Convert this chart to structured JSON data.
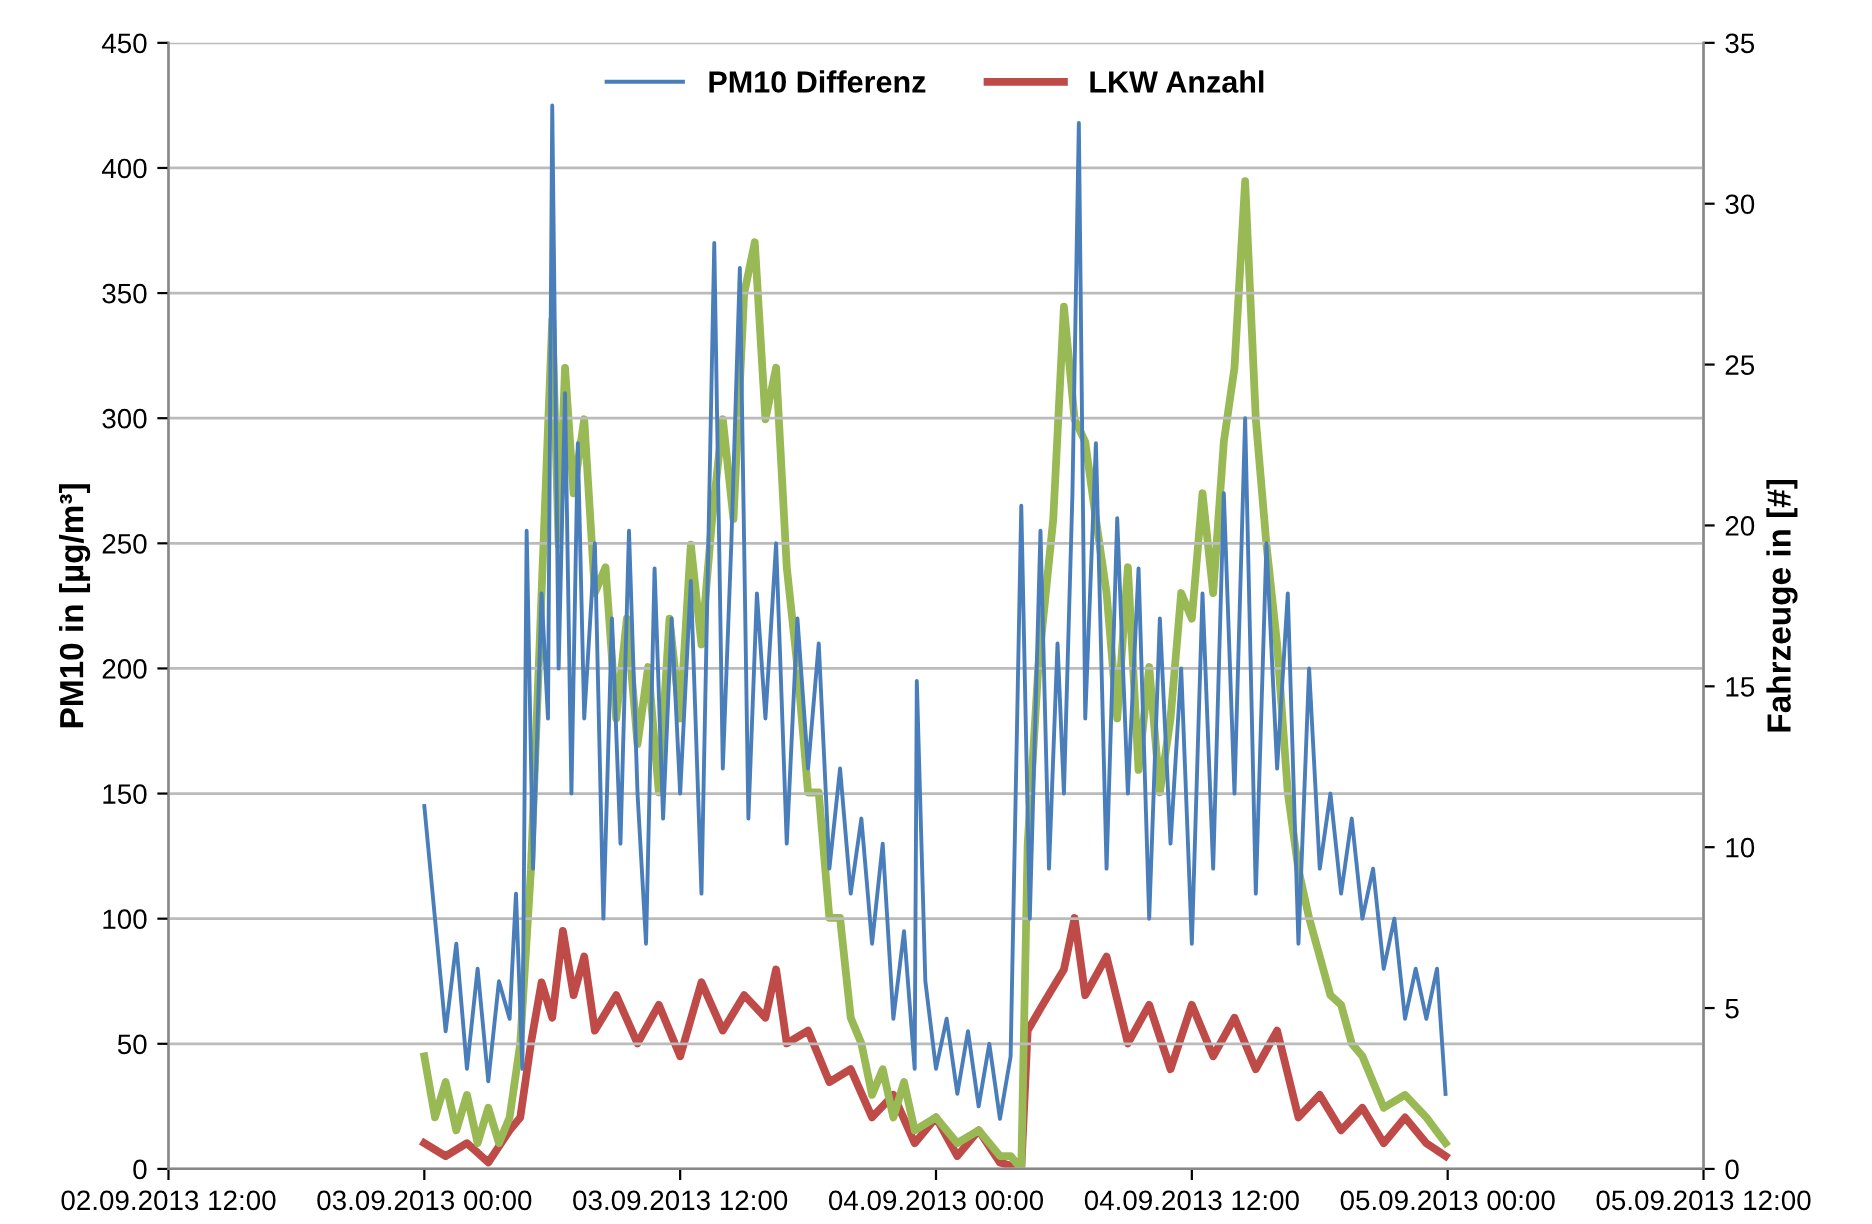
{
  "chart_data": {
    "type": "line",
    "ylabel": "PM10 in [µg/m³]",
    "y2label": "Fahrzeuge in [#]",
    "xlim": [
      "2013-09-02T12:00",
      "2013-09-05T12:00"
    ],
    "xticks": [
      {
        "value": "2013-09-02T12:00",
        "label": "02.09.2013 12:00"
      },
      {
        "value": "2013-09-03T00:00",
        "label": "03.09.2013 00:00"
      },
      {
        "value": "2013-09-03T12:00",
        "label": "03.09.2013 12:00"
      },
      {
        "value": "2013-09-04T00:00",
        "label": "04.09.2013 00:00"
      },
      {
        "value": "2013-09-04T12:00",
        "label": "04.09.2013 12:00"
      },
      {
        "value": "2013-09-05T00:00",
        "label": "05.09.2013 00:00"
      },
      {
        "value": "2013-09-05T12:00",
        "label": "05.09.2013 12:00"
      }
    ],
    "ylim": [
      0,
      450
    ],
    "yticks": [
      0,
      50,
      100,
      150,
      200,
      250,
      300,
      350,
      400,
      450
    ],
    "y2lim": [
      0,
      35
    ],
    "y2ticks": [
      0,
      5,
      10,
      15,
      20,
      25,
      30,
      35
    ],
    "grid": "y",
    "legend": "top",
    "marker": "none",
    "line_style": "solid",
    "series": [
      {
        "name": "PM10 Differenz",
        "color": "#4a7ebb",
        "x": [
          "2013-09-03T00:00",
          "2013-09-03T00:30",
          "2013-09-03T01:00",
          "2013-09-03T01:30",
          "2013-09-03T02:00",
          "2013-09-03T02:30",
          "2013-09-03T03:00",
          "2013-09-03T03:30",
          "2013-09-03T04:00",
          "2013-09-03T04:18",
          "2013-09-03T04:36",
          "2013-09-03T04:48",
          "2013-09-03T05:06",
          "2013-09-03T05:30",
          "2013-09-03T05:48",
          "2013-09-03T06:00",
          "2013-09-03T06:18",
          "2013-09-03T06:36",
          "2013-09-03T06:54",
          "2013-09-03T07:12",
          "2013-09-03T07:30",
          "2013-09-03T08:00",
          "2013-09-03T08:24",
          "2013-09-03T08:48",
          "2013-09-03T09:12",
          "2013-09-03T09:36",
          "2013-09-03T10:00",
          "2013-09-03T10:24",
          "2013-09-03T10:48",
          "2013-09-03T11:12",
          "2013-09-03T11:36",
          "2013-09-03T12:00",
          "2013-09-03T12:30",
          "2013-09-03T13:00",
          "2013-09-03T13:36",
          "2013-09-03T14:00",
          "2013-09-03T14:24",
          "2013-09-03T14:48",
          "2013-09-03T15:12",
          "2013-09-03T15:36",
          "2013-09-03T16:00",
          "2013-09-03T16:30",
          "2013-09-03T17:00",
          "2013-09-03T17:30",
          "2013-09-03T18:00",
          "2013-09-03T18:30",
          "2013-09-03T19:00",
          "2013-09-03T19:30",
          "2013-09-03T20:00",
          "2013-09-03T20:30",
          "2013-09-03T21:00",
          "2013-09-03T21:30",
          "2013-09-03T22:00",
          "2013-09-03T22:30",
          "2013-09-03T23:00",
          "2013-09-03T23:06",
          "2013-09-03T23:30",
          "2013-09-04T00:00",
          "2013-09-04T00:30",
          "2013-09-04T01:00",
          "2013-09-04T01:30",
          "2013-09-04T02:00",
          "2013-09-04T02:30",
          "2013-09-04T03:00",
          "2013-09-04T03:30",
          "2013-09-04T04:00",
          "2013-09-04T04:24",
          "2013-09-04T04:54",
          "2013-09-04T05:18",
          "2013-09-04T05:42",
          "2013-09-04T06:00",
          "2013-09-04T06:24",
          "2013-09-04T06:42",
          "2013-09-04T07:00",
          "2013-09-04T07:30",
          "2013-09-04T08:00",
          "2013-09-04T08:30",
          "2013-09-04T09:00",
          "2013-09-04T09:30",
          "2013-09-04T10:00",
          "2013-09-04T10:30",
          "2013-09-04T11:00",
          "2013-09-04T11:30",
          "2013-09-04T12:00",
          "2013-09-04T12:30",
          "2013-09-04T13:00",
          "2013-09-04T13:30",
          "2013-09-04T14:00",
          "2013-09-04T14:30",
          "2013-09-04T15:00",
          "2013-09-04T15:30",
          "2013-09-04T16:00",
          "2013-09-04T16:30",
          "2013-09-04T17:00",
          "2013-09-04T17:30",
          "2013-09-04T18:00",
          "2013-09-04T18:30",
          "2013-09-04T19:00",
          "2013-09-04T19:30",
          "2013-09-04T20:00",
          "2013-09-04T20:30",
          "2013-09-04T21:00",
          "2013-09-04T21:30",
          "2013-09-04T22:00",
          "2013-09-04T22:30",
          "2013-09-04T23:00",
          "2013-09-04T23:30",
          "2013-09-04T23:54"
        ],
        "values": [
          145,
          100,
          55,
          90,
          40,
          80,
          35,
          75,
          60,
          110,
          40,
          255,
          120,
          230,
          180,
          425,
          200,
          310,
          150,
          290,
          180,
          250,
          100,
          220,
          130,
          255,
          150,
          90,
          240,
          140,
          220,
          150,
          235,
          110,
          370,
          160,
          250,
          360,
          140,
          230,
          180,
          250,
          130,
          220,
          160,
          210,
          120,
          160,
          110,
          140,
          90,
          130,
          60,
          95,
          40,
          195,
          75,
          40,
          60,
          30,
          55,
          25,
          50,
          20,
          45,
          265,
          100,
          255,
          120,
          210,
          150,
          270,
          418,
          180,
          290,
          120,
          260,
          150,
          240,
          100,
          220,
          130,
          200,
          90,
          230,
          120,
          270,
          150,
          300,
          110,
          250,
          160,
          230,
          90,
          200,
          120,
          150,
          110,
          140,
          100,
          120,
          80,
          100,
          60,
          80,
          60,
          80,
          30
        ]
      },
      {
        "name": "LKW Anzahl",
        "color": "#be4b48",
        "axis": "y2",
        "x": [
          "2013-09-03T00:00",
          "2013-09-03T01:00",
          "2013-09-03T02:00",
          "2013-09-03T03:00",
          "2013-09-03T04:00",
          "2013-09-03T04:30",
          "2013-09-03T05:00",
          "2013-09-03T05:30",
          "2013-09-03T06:00",
          "2013-09-03T06:30",
          "2013-09-03T07:00",
          "2013-09-03T07:30",
          "2013-09-03T08:00",
          "2013-09-03T09:00",
          "2013-09-03T10:00",
          "2013-09-03T11:00",
          "2013-09-03T12:00",
          "2013-09-03T13:00",
          "2013-09-03T14:00",
          "2013-09-03T15:00",
          "2013-09-03T16:00",
          "2013-09-03T16:30",
          "2013-09-03T17:00",
          "2013-09-03T18:00",
          "2013-09-03T19:00",
          "2013-09-03T20:00",
          "2013-09-03T21:00",
          "2013-09-03T22:00",
          "2013-09-03T23:00",
          "2013-09-04T00:00",
          "2013-09-04T01:00",
          "2013-09-04T02:00",
          "2013-09-04T03:00",
          "2013-09-04T04:00",
          "2013-09-04T04:18",
          "2013-09-04T05:00",
          "2013-09-04T06:00",
          "2013-09-04T06:30",
          "2013-09-04T07:00",
          "2013-09-04T08:00",
          "2013-09-04T09:00",
          "2013-09-04T10:00",
          "2013-09-04T11:00",
          "2013-09-04T12:00",
          "2013-09-04T13:00",
          "2013-09-04T14:00",
          "2013-09-04T15:00",
          "2013-09-04T16:00",
          "2013-09-04T17:00",
          "2013-09-04T18:00",
          "2013-09-04T19:00",
          "2013-09-04T20:00",
          "2013-09-04T21:00",
          "2013-09-04T22:00",
          "2013-09-04T23:00",
          "2013-09-04T23:54"
        ],
        "values": [
          0.8,
          0.4,
          0.8,
          0.2,
          1.2,
          1.6,
          3.9,
          5.8,
          4.7,
          7.4,
          5.4,
          6.6,
          4.3,
          5.4,
          3.9,
          5.1,
          3.5,
          5.8,
          4.3,
          5.4,
          4.7,
          6.2,
          3.9,
          4.3,
          2.7,
          3.1,
          1.6,
          2.3,
          0.8,
          1.6,
          0.4,
          1.2,
          0.2,
          0,
          4.3,
          5.1,
          6.2,
          7.8,
          5.4,
          6.6,
          3.9,
          5.1,
          3.1,
          5.1,
          3.5,
          4.7,
          3.1,
          4.3,
          1.6,
          2.3,
          1.2,
          1.9,
          0.8,
          1.6,
          0.8,
          0.4
        ]
      },
      {
        "color": "#98b954",
        "axis": "y2",
        "x": [
          "2013-09-03T00:00",
          "2013-09-03T00:30",
          "2013-09-03T01:00",
          "2013-09-03T01:30",
          "2013-09-03T02:00",
          "2013-09-03T02:30",
          "2013-09-03T03:00",
          "2013-09-03T03:30",
          "2013-09-03T04:00",
          "2013-09-03T04:30",
          "2013-09-03T05:00",
          "2013-09-03T05:30",
          "2013-09-03T06:00",
          "2013-09-03T06:18",
          "2013-09-03T06:36",
          "2013-09-03T07:00",
          "2013-09-03T07:30",
          "2013-09-03T08:00",
          "2013-09-03T08:30",
          "2013-09-03T09:00",
          "2013-09-03T09:30",
          "2013-09-03T10:00",
          "2013-09-03T10:30",
          "2013-09-03T11:00",
          "2013-09-03T11:30",
          "2013-09-03T12:00",
          "2013-09-03T12:30",
          "2013-09-03T13:00",
          "2013-09-03T13:30",
          "2013-09-03T14:00",
          "2013-09-03T14:30",
          "2013-09-03T15:00",
          "2013-09-03T15:30",
          "2013-09-03T16:00",
          "2013-09-03T16:30",
          "2013-09-03T17:00",
          "2013-09-03T17:30",
          "2013-09-03T18:00",
          "2013-09-03T18:30",
          "2013-09-03T19:00",
          "2013-09-03T19:30",
          "2013-09-03T20:00",
          "2013-09-03T20:30",
          "2013-09-03T21:00",
          "2013-09-03T21:30",
          "2013-09-03T22:00",
          "2013-09-03T22:30",
          "2013-09-03T23:00",
          "2013-09-04T00:00",
          "2013-09-04T01:00",
          "2013-09-04T02:00",
          "2013-09-04T03:00",
          "2013-09-04T03:30",
          "2013-09-04T04:00",
          "2013-09-04T04:18",
          "2013-09-04T04:48",
          "2013-09-04T05:30",
          "2013-09-04T06:00",
          "2013-09-04T06:30",
          "2013-09-04T07:00",
          "2013-09-04T07:30",
          "2013-09-04T08:00",
          "2013-09-04T08:30",
          "2013-09-04T09:00",
          "2013-09-04T09:30",
          "2013-09-04T10:00",
          "2013-09-04T10:30",
          "2013-09-04T11:00",
          "2013-09-04T11:30",
          "2013-09-04T12:00",
          "2013-09-04T12:30",
          "2013-09-04T13:00",
          "2013-09-04T13:30",
          "2013-09-04T14:00",
          "2013-09-04T14:30",
          "2013-09-04T15:00",
          "2013-09-04T15:30",
          "2013-09-04T16:00",
          "2013-09-04T16:30",
          "2013-09-04T17:00",
          "2013-09-04T17:30",
          "2013-09-04T18:00",
          "2013-09-04T18:30",
          "2013-09-04T19:00",
          "2013-09-04T19:30",
          "2013-09-04T20:00",
          "2013-09-04T20:30",
          "2013-09-04T21:00",
          "2013-09-04T22:00",
          "2013-09-04T23:00",
          "2013-09-04T23:54"
        ],
        "values": [
          3.5,
          1.6,
          2.7,
          1.2,
          2.3,
          0.8,
          1.9,
          0.8,
          1.6,
          3.9,
          9.3,
          17.9,
          26.4,
          19.4,
          24.9,
          21.0,
          23.3,
          17.9,
          18.7,
          14.0,
          17.1,
          13.2,
          15.6,
          11.7,
          17.1,
          14.0,
          19.4,
          16.3,
          20.2,
          23.3,
          20.2,
          27.2,
          28.8,
          23.3,
          24.9,
          18.7,
          15.6,
          11.7,
          11.7,
          7.8,
          7.8,
          4.7,
          3.9,
          2.3,
          3.1,
          1.6,
          2.7,
          1.2,
          1.6,
          0.8,
          1.2,
          0.4,
          0.4,
          0,
          10.1,
          15.6,
          20.2,
          26.8,
          23.3,
          22.6,
          20.2,
          17.9,
          14.0,
          18.7,
          12.4,
          15.6,
          11.7,
          14.0,
          17.9,
          17.1,
          21.0,
          17.9,
          22.6,
          24.9,
          30.7,
          23.3,
          19.4,
          16.3,
          11.7,
          9.3,
          7.8,
          6.6,
          5.4,
          5.1,
          3.9,
          3.5,
          2.7,
          1.9,
          2.3,
          1.6,
          0.8
        ]
      }
    ]
  }
}
